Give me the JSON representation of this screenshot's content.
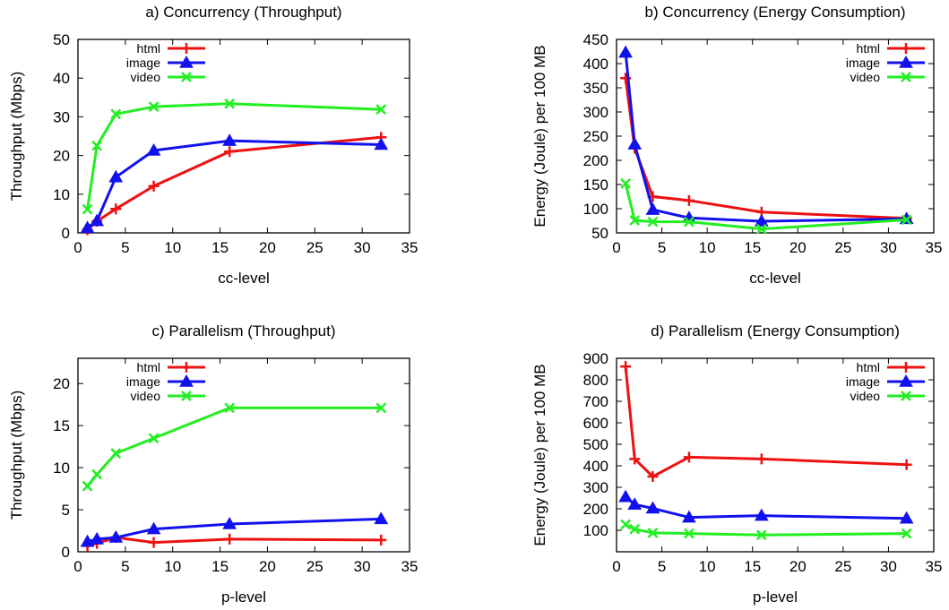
{
  "colors": {
    "html": "#ee1111",
    "image": "#1111ee",
    "video": "#22ee22"
  },
  "chart_data": [
    {
      "type": "line",
      "title": "a) Concurrency (Throughput)",
      "xlabel": "cc-level",
      "ylabel": "Throughput (Mbps)",
      "xlim": [
        0,
        35
      ],
      "ylim": [
        0,
        50
      ],
      "xticks": [
        "0",
        "5",
        "10",
        "15",
        "20",
        "25",
        "30",
        "35"
      ],
      "yticks": [
        "0",
        "10",
        "20",
        "30",
        "40",
        "50"
      ],
      "legend_position": "top-left",
      "x": [
        1,
        2,
        4,
        8,
        16,
        32
      ],
      "series": [
        {
          "name": "html",
          "marker": "plus",
          "color": "#ee1111",
          "values": [
            0.8,
            3.0,
            6.2,
            12.1,
            21.0,
            24.7
          ]
        },
        {
          "name": "image",
          "marker": "triangle",
          "color": "#1111ee",
          "values": [
            1.3,
            3.1,
            14.4,
            21.3,
            23.8,
            22.8
          ]
        },
        {
          "name": "video",
          "marker": "cross",
          "color": "#22ee22",
          "values": [
            6.1,
            22.5,
            30.7,
            32.6,
            33.4,
            31.9
          ]
        }
      ]
    },
    {
      "type": "line",
      "title": "b) Concurrency (Energy Consumption)",
      "xlabel": "cc-level",
      "ylabel": "Energy (Joule) per 100 MB",
      "xlim": [
        0,
        35
      ],
      "ylim": [
        50,
        450
      ],
      "xticks": [
        "0",
        "5",
        "10",
        "15",
        "20",
        "25",
        "30",
        "35"
      ],
      "yticks": [
        "50",
        "100",
        "150",
        "200",
        "250",
        "300",
        "350",
        "400",
        "450"
      ],
      "legend_position": "top-right",
      "x": [
        1,
        2,
        4,
        8,
        16,
        32
      ],
      "series": [
        {
          "name": "html",
          "marker": "plus",
          "color": "#ee1111",
          "values": [
            370,
            225,
            125,
            117,
            93,
            80
          ]
        },
        {
          "name": "image",
          "marker": "triangle",
          "color": "#1111ee",
          "values": [
            423,
            233,
            98,
            81,
            74,
            79
          ]
        },
        {
          "name": "video",
          "marker": "cross",
          "color": "#22ee22",
          "values": [
            152,
            76,
            73,
            73,
            58,
            77
          ]
        }
      ]
    },
    {
      "type": "line",
      "title": "c) Parallelism (Throughput)",
      "xlabel": "p-level",
      "ylabel": "Throughput (Mbps)",
      "xlim": [
        0,
        35
      ],
      "ylim": [
        0,
        23
      ],
      "xticks": [
        "0",
        "5",
        "10",
        "15",
        "20",
        "25",
        "30",
        "35"
      ],
      "yticks": [
        "0",
        "5",
        "10",
        "15",
        "20"
      ],
      "legend_position": "top-left",
      "x": [
        1,
        2,
        4,
        8,
        16,
        32
      ],
      "series": [
        {
          "name": "html",
          "marker": "plus",
          "color": "#ee1111",
          "values": [
            0.7,
            1.0,
            1.7,
            1.1,
            1.5,
            1.4
          ]
        },
        {
          "name": "image",
          "marker": "triangle",
          "color": "#1111ee",
          "values": [
            1.2,
            1.5,
            1.7,
            2.7,
            3.3,
            3.9
          ]
        },
        {
          "name": "video",
          "marker": "cross",
          "color": "#22ee22",
          "values": [
            7.8,
            9.2,
            11.7,
            13.5,
            17.1,
            17.1
          ]
        }
      ]
    },
    {
      "type": "line",
      "title": "d) Parallelism (Energy Consumption)",
      "xlabel": "p-level",
      "ylabel": "Energy (Joule) per 100 MB",
      "xlim": [
        0,
        35
      ],
      "ylim": [
        0,
        900
      ],
      "xticks": [
        "0",
        "5",
        "10",
        "15",
        "20",
        "25",
        "30",
        "35"
      ],
      "yticks": [
        "100",
        "200",
        "300",
        "400",
        "500",
        "600",
        "700",
        "800",
        "900"
      ],
      "legend_position": "top-right",
      "x": [
        1,
        2,
        4,
        8,
        16,
        32
      ],
      "series": [
        {
          "name": "html",
          "marker": "plus",
          "color": "#ee1111",
          "values": [
            862,
            432,
            350,
            440,
            432,
            405
          ]
        },
        {
          "name": "image",
          "marker": "triangle",
          "color": "#1111ee",
          "values": [
            255,
            220,
            202,
            160,
            168,
            155
          ]
        },
        {
          "name": "video",
          "marker": "cross",
          "color": "#22ee22",
          "values": [
            127,
            105,
            88,
            85,
            78,
            85
          ]
        }
      ]
    }
  ]
}
